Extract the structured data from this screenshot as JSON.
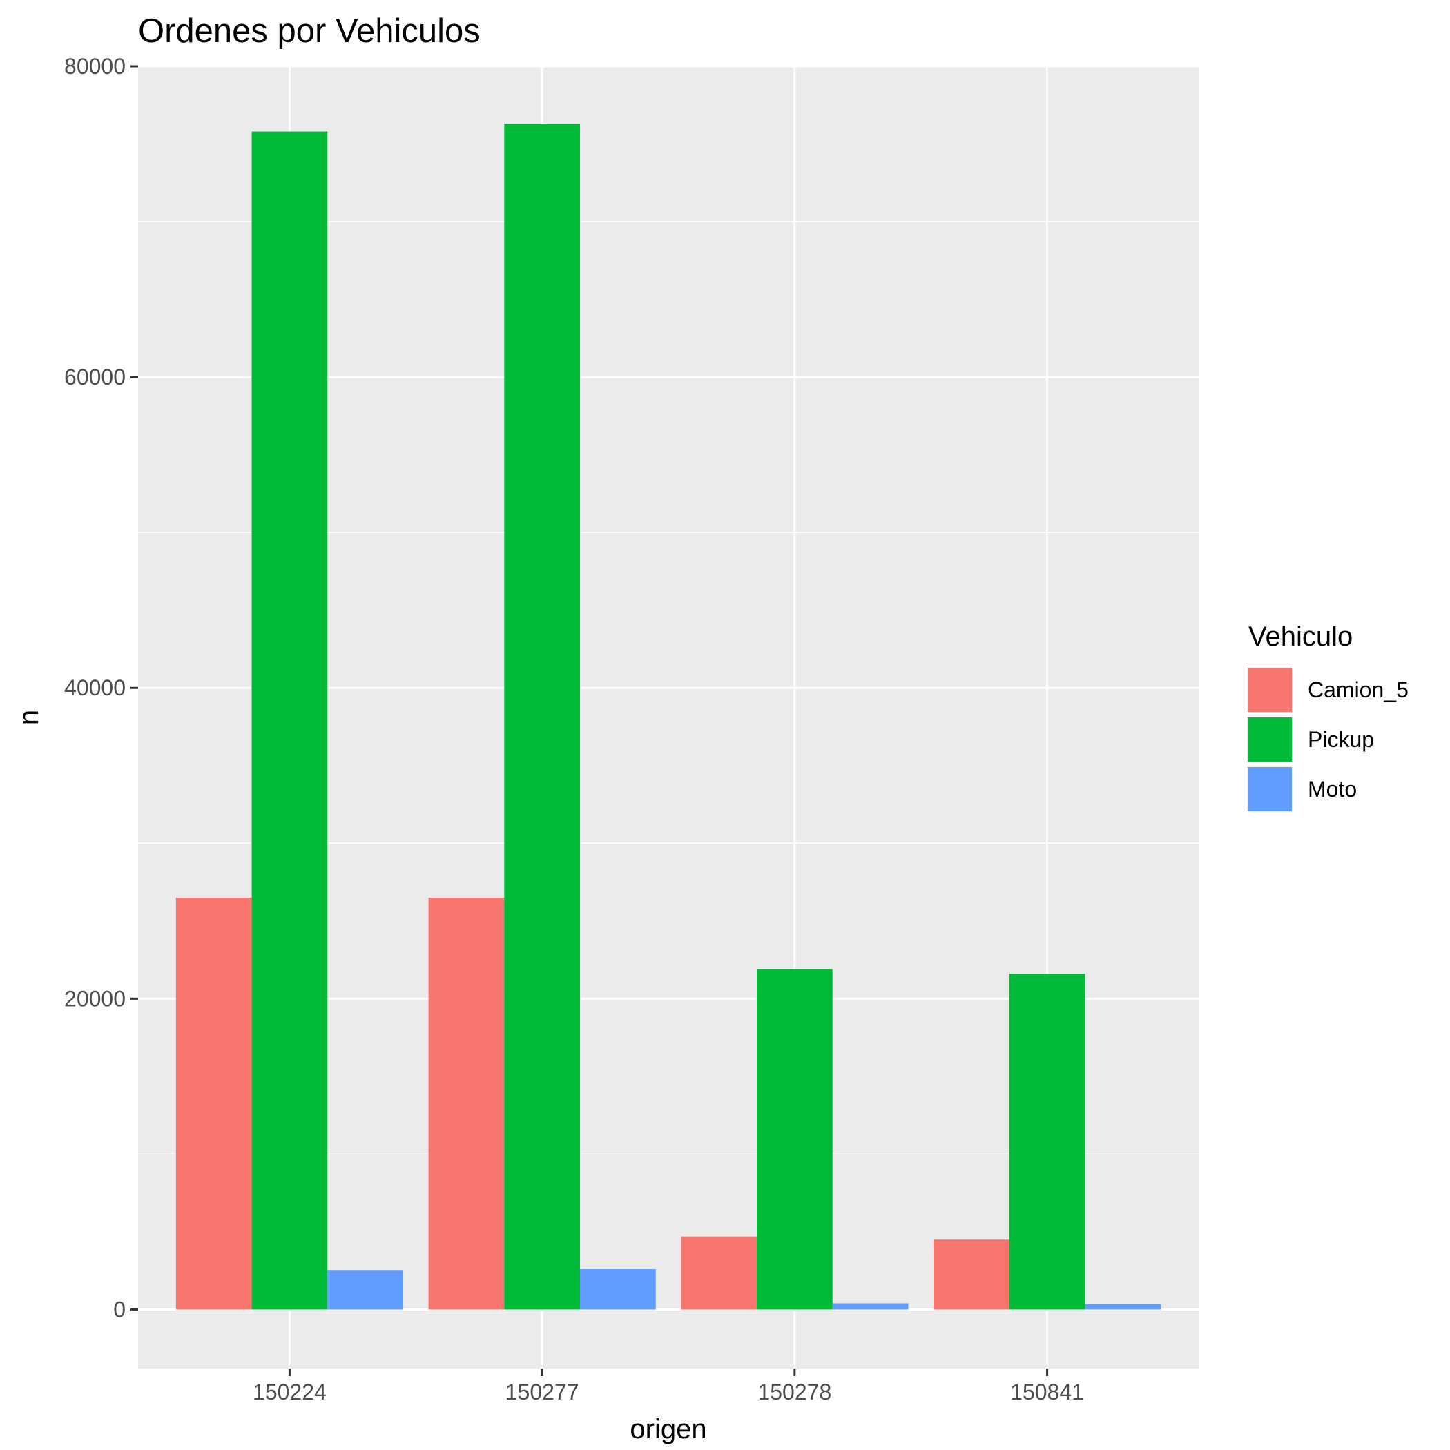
{
  "chart_data": {
    "type": "bar",
    "title": "Ordenes por Vehiculos",
    "xlabel": "origen",
    "ylabel": "n",
    "categories": [
      "150224",
      "150277",
      "150278",
      "150841"
    ],
    "series": [
      {
        "name": "Camion_5",
        "color": "#F8766D",
        "values": [
          26500,
          26500,
          4700,
          4500
        ]
      },
      {
        "name": "Pickup",
        "color": "#00BA38",
        "values": [
          75800,
          76300,
          21900,
          21600
        ]
      },
      {
        "name": "Moto",
        "color": "#619CFF",
        "values": [
          2500,
          2600,
          400,
          350
        ]
      }
    ],
    "ylim": [
      -3800,
      80000
    ],
    "yticks": [
      0,
      20000,
      40000,
      60000,
      80000
    ],
    "ytick_labels": [
      "0",
      "20000",
      "40000",
      "60000",
      "80000"
    ],
    "grid": true,
    "panel_background": "#EBEBEB",
    "legend": {
      "title": "Vehiculo",
      "placement": "right"
    }
  }
}
